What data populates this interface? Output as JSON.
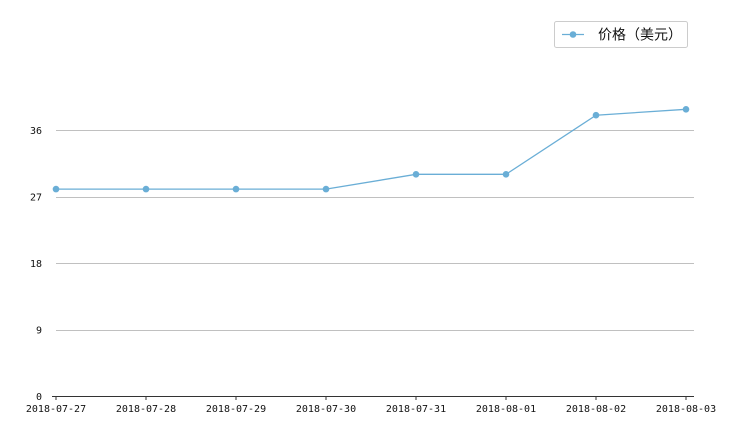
{
  "chart_data": {
    "type": "line",
    "title": "",
    "xlabel": "",
    "ylabel": "",
    "x": [
      "2018-07-27",
      "2018-07-28",
      "2018-07-29",
      "2018-07-30",
      "2018-07-31",
      "2018-08-01",
      "2018-08-02",
      "2018-08-03"
    ],
    "series": [
      {
        "name": "价格（美元）",
        "values": [
          28.0,
          28.0,
          28.0,
          28.0,
          30.0,
          30.0,
          38.0,
          38.8
        ],
        "color": "#6aaed6"
      }
    ],
    "ylim": [
      0,
      36
    ],
    "yticks": [
      0,
      9,
      18,
      27,
      36
    ],
    "grid": true,
    "legend": "top-right",
    "gridline_color": "#c0c0c0",
    "axis_color": "#333333",
    "text_color": "#111111"
  }
}
